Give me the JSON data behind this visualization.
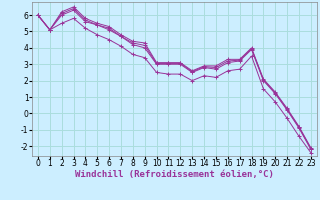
{
  "bg_color": "#cceeff",
  "line_color": "#993399",
  "grid_color": "#aadddd",
  "xlabel": "Windchill (Refroidissement éolien,°C)",
  "xlabel_fontsize": 6.5,
  "tick_fontsize": 5.5,
  "xlim": [
    -0.5,
    23.5
  ],
  "ylim": [
    -2.6,
    6.8
  ],
  "yticks": [
    -2,
    -1,
    0,
    1,
    2,
    3,
    4,
    5,
    6
  ],
  "xticks": [
    0,
    1,
    2,
    3,
    4,
    5,
    6,
    7,
    8,
    9,
    10,
    11,
    12,
    13,
    14,
    15,
    16,
    17,
    18,
    19,
    20,
    21,
    22,
    23
  ],
  "series": [
    [
      6.0,
      5.1,
      6.2,
      6.5,
      5.8,
      5.5,
      5.3,
      4.8,
      4.4,
      4.3,
      3.1,
      3.1,
      3.1,
      2.6,
      2.9,
      2.9,
      3.3,
      3.3,
      4.0,
      2.1,
      1.3,
      0.3,
      -0.8,
      -2.1
    ],
    [
      6.0,
      5.1,
      6.1,
      6.4,
      5.7,
      5.4,
      5.2,
      4.7,
      4.3,
      4.15,
      3.05,
      3.05,
      3.05,
      2.55,
      2.85,
      2.8,
      3.2,
      3.25,
      3.95,
      2.05,
      1.25,
      0.25,
      -0.85,
      -2.15
    ],
    [
      6.0,
      5.1,
      6.0,
      6.3,
      5.6,
      5.4,
      5.1,
      4.7,
      4.2,
      4.0,
      3.0,
      3.0,
      3.0,
      2.5,
      2.8,
      2.7,
      3.1,
      3.2,
      3.9,
      2.0,
      1.2,
      0.2,
      -0.9,
      -2.2
    ],
    [
      6.0,
      5.1,
      5.5,
      5.8,
      5.2,
      4.8,
      4.5,
      4.1,
      3.6,
      3.4,
      2.5,
      2.4,
      2.4,
      2.0,
      2.3,
      2.2,
      2.6,
      2.7,
      3.5,
      1.5,
      0.7,
      -0.3,
      -1.4,
      -2.4
    ]
  ]
}
